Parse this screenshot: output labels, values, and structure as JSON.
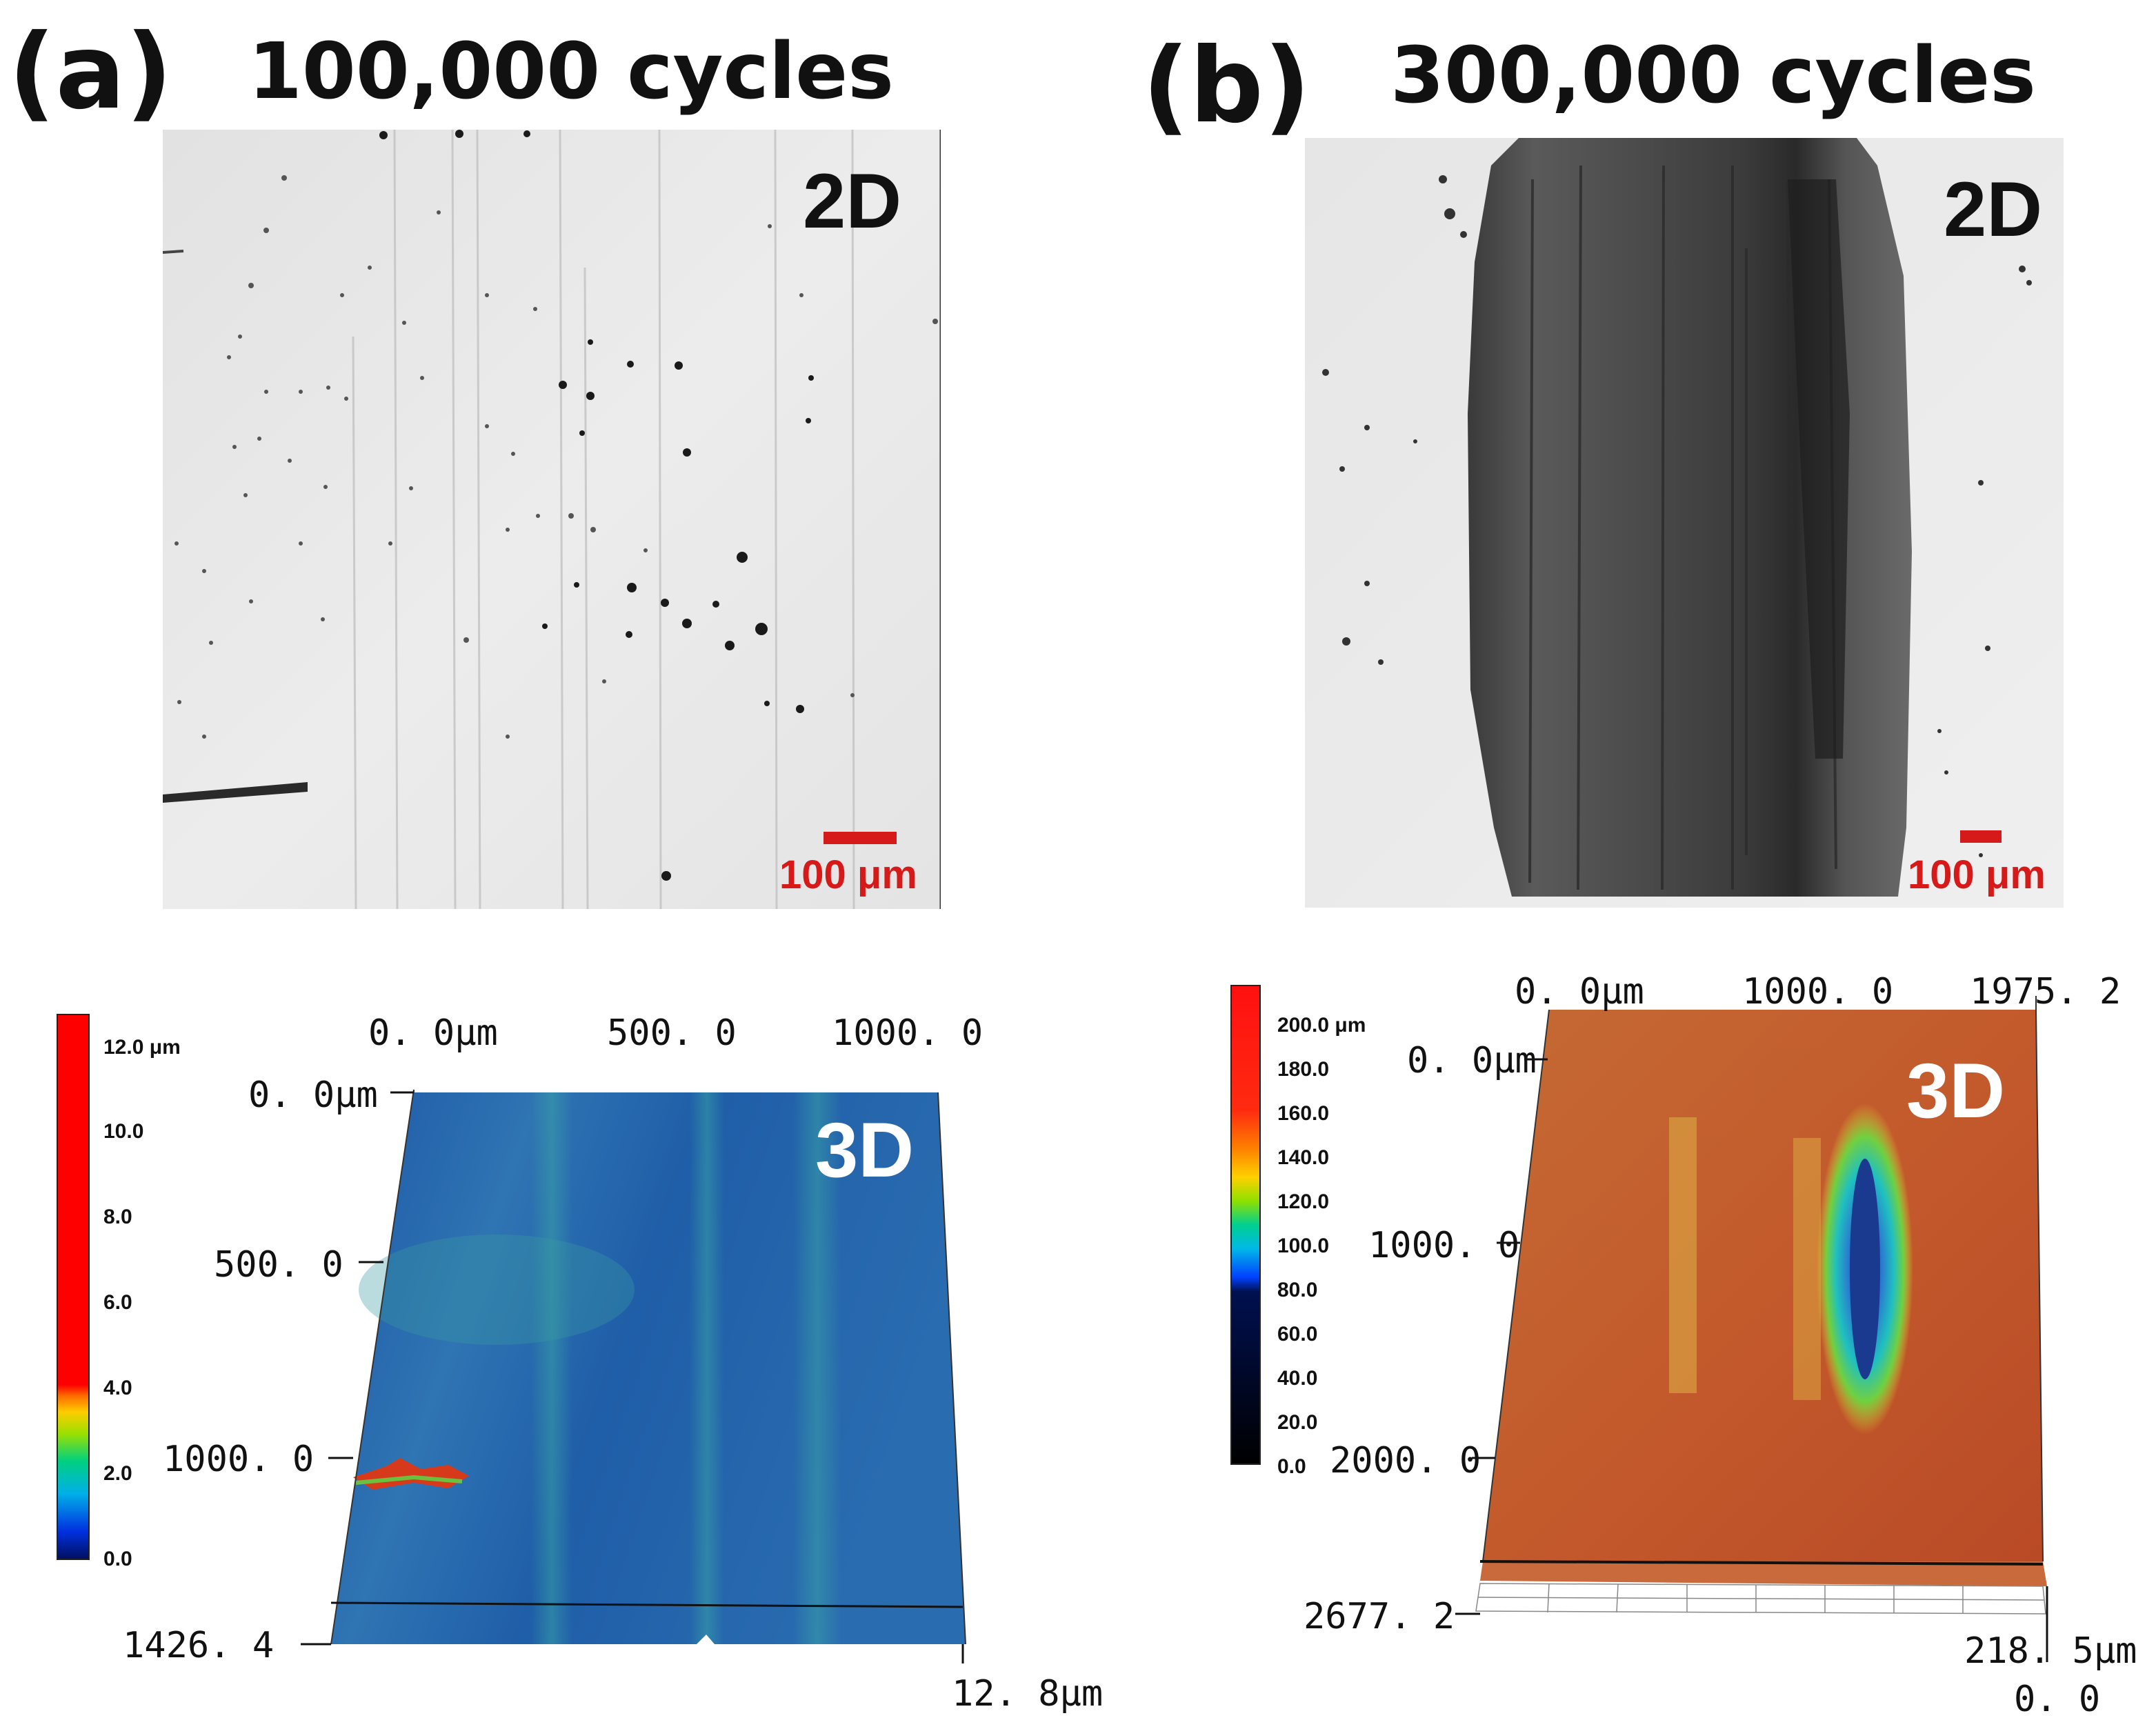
{
  "panels": [
    {
      "label": "(a)",
      "title": "100,000 cycles",
      "view2d_label": "2D",
      "view3d_label": "3D",
      "scale_bar": "100 μm",
      "colorbar_ticks": [
        "12.0 μm",
        "10.0",
        "8.0",
        "6.0",
        "4.0",
        "2.0",
        "0.0"
      ],
      "x_ticks": [
        "0. 0μm",
        "500. 0",
        "1000. 0"
      ],
      "y_ticks": [
        "0. 0μm",
        "500. 0",
        "1000. 0",
        "1426. 4"
      ],
      "z_ticks": [
        "12. 8μm"
      ]
    },
    {
      "label": "(b)",
      "title": "300,000 cycles",
      "view2d_label": "2D",
      "view3d_label": "3D",
      "scale_bar": "100 μm",
      "colorbar_ticks": [
        "200.0 μm",
        "180.0",
        "160.0",
        "140.0",
        "120.0",
        "100.0",
        "80.0",
        "60.0",
        "40.0",
        "20.0",
        "0.0"
      ],
      "x_ticks": [
        "0. 0μm",
        "1000. 0",
        "1975. 2"
      ],
      "y_ticks": [
        "0. 0μm",
        "1000. 0",
        "2000. 0",
        "2677. 2"
      ],
      "z_ticks": [
        "218. 5μm",
        "0. 0"
      ]
    }
  ],
  "colors": {
    "scale_bar": "#d61a1a",
    "surface_a": "#1f5fa8",
    "surface_b": "#c0562a"
  }
}
